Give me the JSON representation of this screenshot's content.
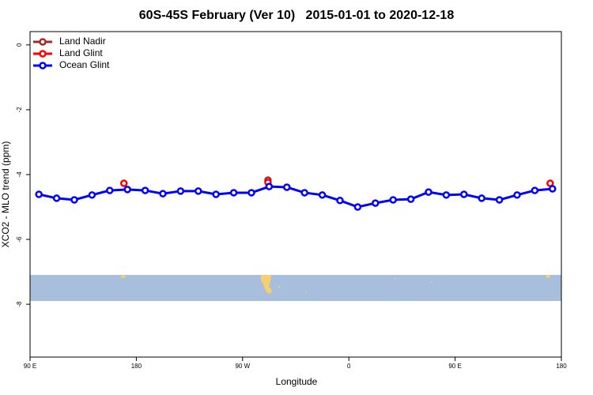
{
  "chart_data": {
    "type": "line",
    "title": "60S-45S February (Ver 10)   2015-01-01 to 2020-12-18",
    "xlabel": "Longitude",
    "ylabel": "XCO2 - MLO trend (ppm)",
    "xlim": [
      90,
      540
    ],
    "xticks": [
      {
        "value": 90,
        "label": "90 E"
      },
      {
        "value": 180,
        "label": "180"
      },
      {
        "value": 270,
        "label": "90 W"
      },
      {
        "value": 360,
        "label": "0"
      },
      {
        "value": 450,
        "label": "90 E"
      },
      {
        "value": 540,
        "label": "180"
      }
    ],
    "ylim": [
      -9.63,
      0.41
    ],
    "yticks": [
      0,
      -2,
      -4,
      -6,
      -8
    ],
    "legend_position": "top-left",
    "series": [
      {
        "name": "Land Nadir",
        "color": "#a52a2a",
        "x": [
          291.5
        ],
        "values": [
          -4.17
        ]
      },
      {
        "name": "Land Glint",
        "color": "#ff0000",
        "x": [
          169.5,
          291.5,
          530.5
        ],
        "values": [
          -4.27,
          -4.24,
          -4.27
        ]
      },
      {
        "name": "Ocean Glint",
        "color": "#0000ff",
        "x": [
          97.5,
          112.5,
          127.5,
          142.5,
          157.5,
          172.5,
          187.5,
          202.5,
          217.5,
          232.5,
          247.5,
          262.5,
          277.5,
          292.5,
          307.5,
          322.5,
          337.5,
          352.5,
          367.5,
          382.5,
          397.5,
          412.5,
          427.5,
          442.5,
          457.5,
          472.5,
          487.5,
          502.5,
          517.5,
          532.5
        ],
        "values": [
          -4.61,
          -4.73,
          -4.78,
          -4.63,
          -4.49,
          -4.46,
          -4.49,
          -4.59,
          -4.51,
          -4.51,
          -4.61,
          -4.56,
          -4.56,
          -4.37,
          -4.39,
          -4.56,
          -4.63,
          -4.8,
          -5.0,
          -4.88,
          -4.78,
          -4.76,
          -4.54,
          -4.63,
          -4.61,
          -4.73,
          -4.78,
          -4.63,
          -4.49,
          -4.44
        ]
      }
    ]
  }
}
